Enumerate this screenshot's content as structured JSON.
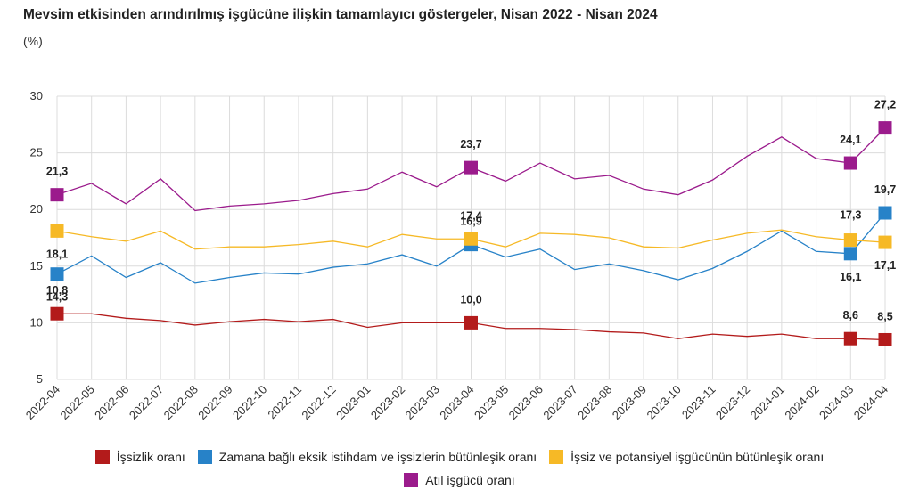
{
  "chart_data": {
    "type": "line",
    "title": "Mevsim etkisinden arındırılmış işgücüne ilişkin tamamlayıcı göstergeler, Nisan 2022 - Nisan 2024",
    "unit": "(%)",
    "x": [
      "2022-04",
      "2022-05",
      "2022-06",
      "2022-07",
      "2022-08",
      "2022-09",
      "2022-10",
      "2022-11",
      "2022-12",
      "2023-01",
      "2023-02",
      "2023-03",
      "2023-04",
      "2023-05",
      "2023-06",
      "2023-07",
      "2023-08",
      "2023-09",
      "2023-10",
      "2023-11",
      "2023-12",
      "2024-01",
      "2024-02",
      "2024-03",
      "2024-04"
    ],
    "ylim": [
      5,
      30
    ],
    "yticks": [
      5,
      10,
      15,
      20,
      25,
      30
    ],
    "grid": true,
    "legend_position": "bottom",
    "series": [
      {
        "name": "İşsizlik oranı",
        "color": "#b31b1b",
        "values": [
          10.8,
          10.8,
          10.4,
          10.2,
          9.8,
          10.1,
          10.3,
          10.1,
          10.3,
          9.6,
          10.0,
          10.0,
          10.0,
          9.5,
          9.5,
          9.4,
          9.2,
          9.1,
          8.6,
          9.0,
          8.8,
          9.0,
          8.6,
          8.6,
          8.5
        ],
        "labels": {
          "0": "10,8",
          "12": "10,0",
          "23": "8,6",
          "24": "8,5"
        }
      },
      {
        "name": "Zamana bağlı eksik istihdam ve işsizlerin bütünleşik oranı",
        "color": "#2782c8",
        "values": [
          14.3,
          15.9,
          14.0,
          15.3,
          13.5,
          14.0,
          14.4,
          14.3,
          14.9,
          15.2,
          16.0,
          15.0,
          16.9,
          15.8,
          16.5,
          14.7,
          15.2,
          14.6,
          13.8,
          14.8,
          16.3,
          18.1,
          16.3,
          16.1,
          19.7
        ],
        "labels": {
          "0": "14,3",
          "12": "16,9",
          "23": "16,1",
          "24": "19,7"
        }
      },
      {
        "name": "İşsiz ve potansiyel işgücünün bütünleşik oranı",
        "color": "#f6b926",
        "values": [
          18.1,
          17.6,
          17.2,
          18.1,
          16.5,
          16.7,
          16.7,
          16.9,
          17.2,
          16.7,
          17.8,
          17.4,
          17.4,
          16.7,
          17.9,
          17.8,
          17.5,
          16.7,
          16.6,
          17.3,
          17.9,
          18.2,
          17.6,
          17.3,
          17.1
        ],
        "labels": {
          "0": "18,1",
          "12": "17,4",
          "23": "17,3",
          "24": "17,1"
        }
      },
      {
        "name": "Atıl işgücü oranı",
        "color": "#9b1b8c",
        "values": [
          21.3,
          22.3,
          20.5,
          22.7,
          19.9,
          20.3,
          20.5,
          20.8,
          21.4,
          21.8,
          23.3,
          22.0,
          23.7,
          22.5,
          24.1,
          22.7,
          23.0,
          21.8,
          21.3,
          22.6,
          24.7,
          26.4,
          24.5,
          24.1,
          27.2
        ],
        "labels": {
          "0": "21,3",
          "12": "23,7",
          "23": "24,1",
          "24": "27,2"
        }
      }
    ]
  }
}
